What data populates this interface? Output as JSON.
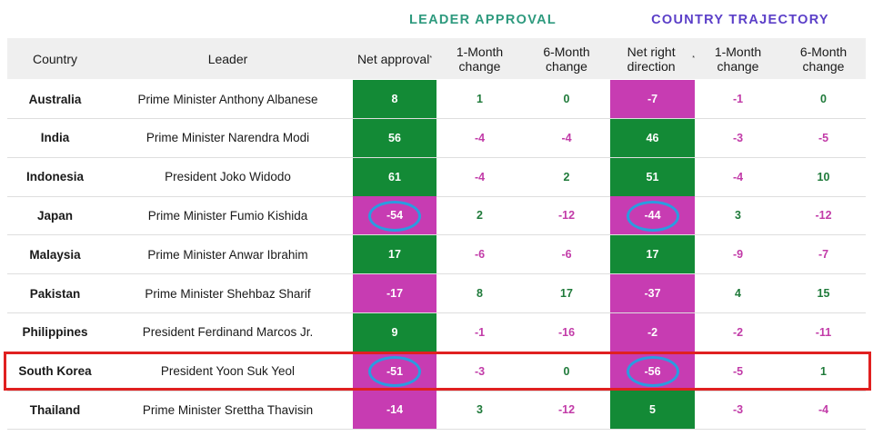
{
  "chart_data": {
    "type": "table",
    "groups": [
      "LEADER APPROVAL",
      "COUNTRY TRAJECTORY"
    ],
    "headers": {
      "country": "Country",
      "leader": "Leader",
      "net_approval": "Net approval",
      "net_approval_marker": "*",
      "la_1m": "1-Month change",
      "la_6m": "6-Month change",
      "net_right": "Net right direction",
      "net_right_marker": "*",
      "ct_1m": "1-Month change",
      "ct_6m": "6-Month change"
    },
    "rows": [
      {
        "country": "Australia",
        "leader": "Prime Minister Anthony Albanese",
        "approval": 8,
        "approval_1m": 1,
        "approval_6m": 0,
        "direction": -7,
        "direction_1m": -1,
        "direction_6m": 0
      },
      {
        "country": "India",
        "leader": "Prime Minister Narendra Modi",
        "approval": 56,
        "approval_1m": -4,
        "approval_6m": -4,
        "direction": 46,
        "direction_1m": -3,
        "direction_6m": -5
      },
      {
        "country": "Indonesia",
        "leader": "President Joko Widodo",
        "approval": 61,
        "approval_1m": -4,
        "approval_6m": 2,
        "direction": 51,
        "direction_1m": -4,
        "direction_6m": 10
      },
      {
        "country": "Japan",
        "leader": "Prime Minister Fumio Kishida",
        "approval": -54,
        "approval_1m": 2,
        "approval_6m": -12,
        "direction": -44,
        "direction_1m": 3,
        "direction_6m": -12
      },
      {
        "country": "Malaysia",
        "leader": "Prime Minister Anwar Ibrahim",
        "approval": 17,
        "approval_1m": -6,
        "approval_6m": -6,
        "direction": 17,
        "direction_1m": -9,
        "direction_6m": -7
      },
      {
        "country": "Pakistan",
        "leader": "Prime Minister Shehbaz Sharif",
        "approval": -17,
        "approval_1m": 8,
        "approval_6m": 17,
        "direction": -37,
        "direction_1m": 4,
        "direction_6m": 15
      },
      {
        "country": "Philippines",
        "leader": "President Ferdinand Marcos Jr.",
        "approval": 9,
        "approval_1m": -1,
        "approval_6m": -16,
        "direction": -2,
        "direction_1m": -2,
        "direction_6m": -11
      },
      {
        "country": "South Korea",
        "leader": "President Yoon Suk Yeol",
        "approval": -51,
        "approval_1m": -3,
        "approval_6m": 0,
        "direction": -56,
        "direction_1m": -5,
        "direction_6m": 1
      },
      {
        "country": "Thailand",
        "leader": "Prime Minister Srettha Thavisin",
        "approval": -14,
        "approval_1m": 3,
        "approval_6m": -12,
        "direction": 5,
        "direction_1m": -3,
        "direction_6m": -4
      }
    ],
    "highlighted_row": "South Korea",
    "circled": [
      {
        "country": "Japan",
        "columns": [
          "approval",
          "direction"
        ]
      },
      {
        "country": "South Korea",
        "columns": [
          "approval",
          "direction"
        ]
      }
    ],
    "colors": {
      "positive_fill": "#138a36",
      "negative_fill": "#c73cb2",
      "positive_text": "#1f7a3a",
      "negative_text": "#c23ba8",
      "leader_group": "#2e9a7e",
      "country_group": "#5b3fc8",
      "highlight": "#e02020",
      "circle": "#2a9ce0"
    }
  }
}
